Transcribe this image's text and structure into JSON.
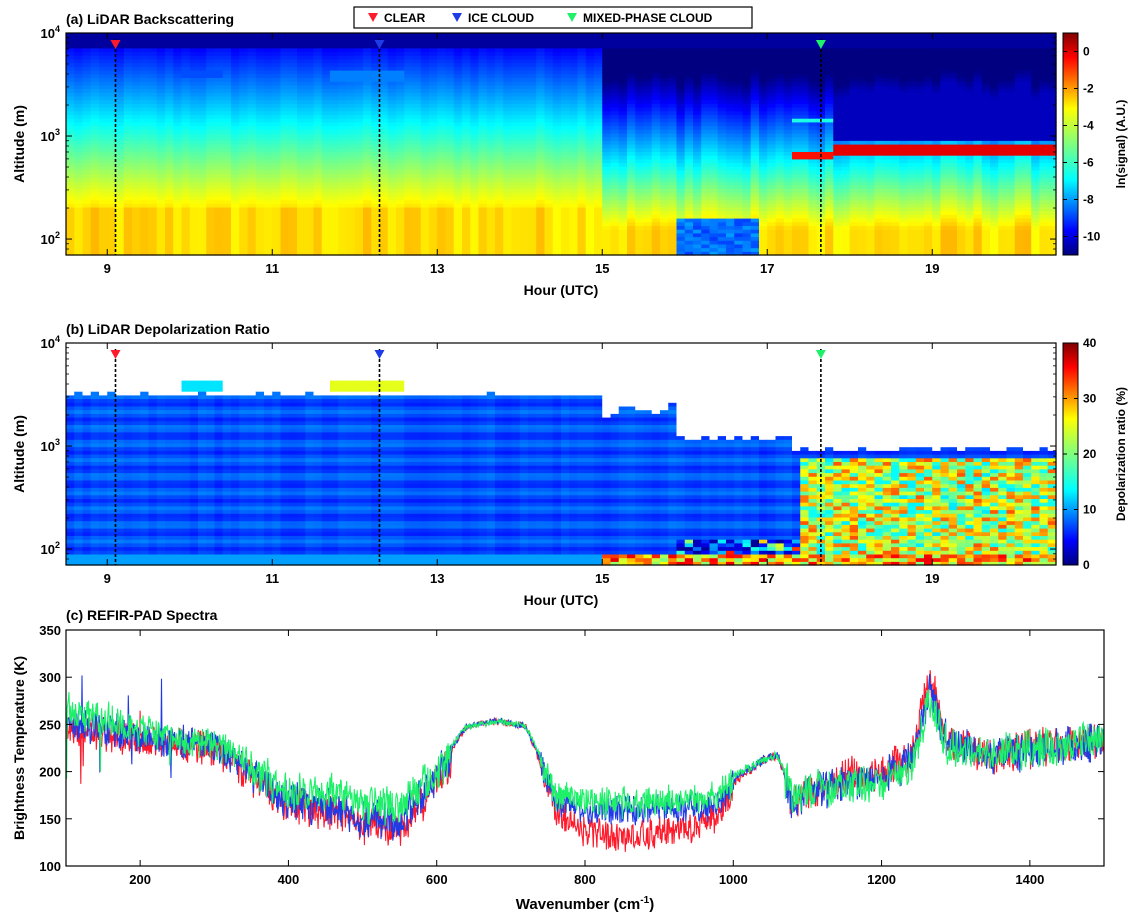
{
  "legend": {
    "items": [
      {
        "label": "CLEAR",
        "color": "#ff1a2b"
      },
      {
        "label": "ICE CLOUD",
        "color": "#1f3be6"
      },
      {
        "label": "MIXED-PHASE CLOUD",
        "color": "#1ff06a"
      }
    ]
  },
  "chart_data": [
    {
      "id": "a",
      "type": "heatmap",
      "title": "(a) LiDAR Backscattering",
      "xlabel": "Hour (UTC)",
      "ylabel": "Altitude (m)",
      "colorbar_label": "ln(signal) (A.U.)",
      "xlim": [
        8.5,
        20.5
      ],
      "ylim": [
        70,
        10000
      ],
      "yscale": "log",
      "x_ticks": [
        "9",
        "11",
        "13",
        "15",
        "17",
        "19"
      ],
      "x_tick_values": [
        9,
        11,
        13,
        15,
        17,
        19
      ],
      "y_ticks": [
        "10^2",
        "10^3",
        "10^4"
      ],
      "y_tick_values": [
        100,
        1000,
        10000
      ],
      "colorbar_range": [
        -11,
        1
      ],
      "colorbar_ticks": [
        "0",
        "-2",
        "-4",
        "-6",
        "-8",
        "-10"
      ],
      "colorbar_tick_values": [
        0,
        -2,
        -4,
        -6,
        -8,
        -10
      ],
      "colormap": "jet",
      "markers": [
        {
          "type": "CLEAR",
          "hour": 9.1
        },
        {
          "type": "ICE CLOUD",
          "hour": 12.3
        },
        {
          "type": "MIXED-PHASE CLOUD",
          "hour": 17.65
        }
      ]
    },
    {
      "id": "b",
      "type": "heatmap",
      "title": "(b) LiDAR Depolarization Ratio",
      "xlabel": "Hour (UTC)",
      "ylabel": "Altitude (m)",
      "colorbar_label": "Depolarization ratio (%)",
      "xlim": [
        8.5,
        20.5
      ],
      "ylim": [
        70,
        10000
      ],
      "yscale": "log",
      "x_ticks": [
        "9",
        "11",
        "13",
        "15",
        "17",
        "19"
      ],
      "x_tick_values": [
        9,
        11,
        13,
        15,
        17,
        19
      ],
      "y_ticks": [
        "10^2",
        "10^3",
        "10^4"
      ],
      "y_tick_values": [
        100,
        1000,
        10000
      ],
      "colorbar_range": [
        0,
        40
      ],
      "colorbar_ticks": [
        "0",
        "10",
        "20",
        "30",
        "40"
      ],
      "colorbar_tick_values": [
        0,
        10,
        20,
        30,
        40
      ],
      "colormap": "jet",
      "markers": [
        {
          "type": "CLEAR",
          "hour": 9.1
        },
        {
          "type": "ICE CLOUD",
          "hour": 12.3
        },
        {
          "type": "MIXED-PHASE CLOUD",
          "hour": 17.65
        }
      ]
    },
    {
      "id": "c",
      "type": "line",
      "title": "(c) REFIR-PAD Spectra",
      "xlabel": "Wavenumber (cm",
      "xlabel_sup": "-1",
      "xlabel_tail": ")",
      "ylabel": "Brightness Temperature (K)",
      "xlim": [
        100,
        1500
      ],
      "ylim": [
        100,
        350
      ],
      "x_ticks": [
        "200",
        "400",
        "600",
        "800",
        "1000",
        "1200",
        "1400"
      ],
      "x_tick_values": [
        200,
        400,
        600,
        800,
        1000,
        1200,
        1400
      ],
      "y_ticks": [
        "100",
        "150",
        "200",
        "250",
        "300",
        "350"
      ],
      "y_tick_values": [
        100,
        150,
        200,
        250,
        300,
        350
      ],
      "series": [
        {
          "name": "CLEAR",
          "color": "#ff1a2b",
          "envelope": [
            [
              100,
              255
            ],
            [
              150,
              250
            ],
            [
              200,
              245
            ],
            [
              250,
              240
            ],
            [
              300,
              235
            ],
            [
              350,
              205
            ],
            [
              400,
              175
            ],
            [
              450,
              170
            ],
            [
              500,
              155
            ],
            [
              550,
              150
            ],
            [
              600,
              200
            ],
            [
              640,
              250
            ],
            [
              680,
              255
            ],
            [
              720,
              250
            ],
            [
              760,
              170
            ],
            [
              800,
              145
            ],
            [
              850,
              140
            ],
            [
              900,
              145
            ],
            [
              950,
              150
            ],
            [
              980,
              160
            ],
            [
              1000,
              190
            ],
            [
              1040,
              215
            ],
            [
              1060,
              220
            ],
            [
              1080,
              175
            ],
            [
              1100,
              185
            ],
            [
              1150,
              205
            ],
            [
              1200,
              210
            ],
            [
              1240,
              225
            ],
            [
              1265,
              310
            ],
            [
              1290,
              240
            ],
            [
              1350,
              230
            ],
            [
              1400,
              235
            ],
            [
              1450,
              240
            ],
            [
              1500,
              245
            ]
          ]
        },
        {
          "name": "ICE CLOUD",
          "color": "#1f3be6",
          "envelope": [
            [
              100,
              262
            ],
            [
              150,
              255
            ],
            [
              200,
              248
            ],
            [
              250,
              242
            ],
            [
              300,
              237
            ],
            [
              350,
              208
            ],
            [
              400,
              180
            ],
            [
              450,
              175
            ],
            [
              500,
              162
            ],
            [
              550,
              160
            ],
            [
              600,
              205
            ],
            [
              640,
              250
            ],
            [
              680,
              256
            ],
            [
              720,
              250
            ],
            [
              760,
              178
            ],
            [
              800,
              170
            ],
            [
              850,
              168
            ],
            [
              900,
              168
            ],
            [
              950,
              170
            ],
            [
              980,
              175
            ],
            [
              1000,
              195
            ],
            [
              1040,
              215
            ],
            [
              1060,
              220
            ],
            [
              1080,
              178
            ],
            [
              1100,
              185
            ],
            [
              1150,
              200
            ],
            [
              1200,
              205
            ],
            [
              1240,
              220
            ],
            [
              1265,
              300
            ],
            [
              1290,
              240
            ],
            [
              1350,
              228
            ],
            [
              1400,
              232
            ],
            [
              1450,
              238
            ],
            [
              1500,
              242
            ]
          ]
        },
        {
          "name": "MIXED-PHASE CLOUD",
          "color": "#1ff06a",
          "envelope": [
            [
              100,
              275
            ],
            [
              150,
              265
            ],
            [
              200,
              252
            ],
            [
              250,
              246
            ],
            [
              300,
              240
            ],
            [
              350,
              215
            ],
            [
              400,
              190
            ],
            [
              450,
              190
            ],
            [
              500,
              178
            ],
            [
              550,
              175
            ],
            [
              600,
              210
            ],
            [
              640,
              250
            ],
            [
              680,
              255
            ],
            [
              720,
              250
            ],
            [
              760,
              185
            ],
            [
              800,
              178
            ],
            [
              850,
              176
            ],
            [
              900,
              178
            ],
            [
              950,
              180
            ],
            [
              980,
              185
            ],
            [
              1000,
              198
            ],
            [
              1040,
              215
            ],
            [
              1060,
              220
            ],
            [
              1080,
              185
            ],
            [
              1100,
              190
            ],
            [
              1150,
              195
            ],
            [
              1200,
              200
            ],
            [
              1240,
              212
            ],
            [
              1265,
              290
            ],
            [
              1290,
              235
            ],
            [
              1350,
              230
            ],
            [
              1400,
              235
            ],
            [
              1450,
              240
            ],
            [
              1500,
              250
            ]
          ]
        }
      ]
    }
  ]
}
